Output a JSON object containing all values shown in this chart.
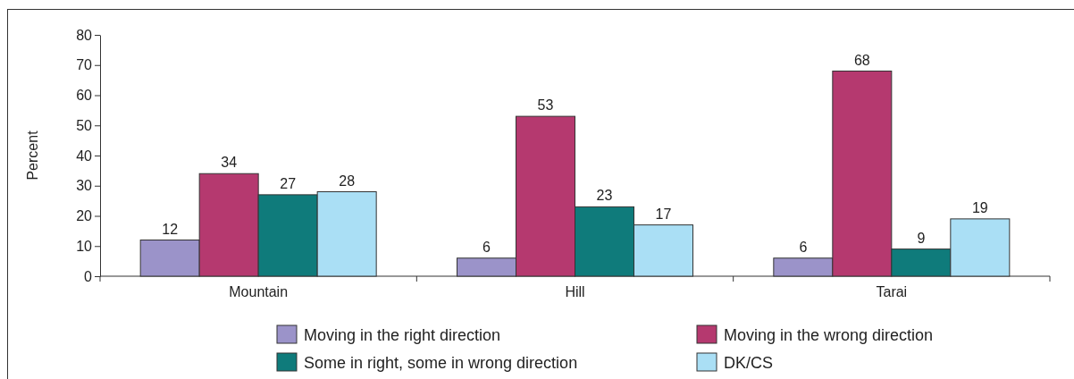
{
  "chart_data": {
    "type": "bar",
    "ylabel": "Percent",
    "categories": [
      "Mountain",
      "Hill",
      "Tarai"
    ],
    "series": [
      {
        "name": "Moving in the right direction",
        "color": "#9b93c9",
        "values": [
          12,
          6,
          6
        ]
      },
      {
        "name": "Moving in the wrong direction",
        "color": "#b5396f",
        "values": [
          34,
          53,
          68
        ]
      },
      {
        "name": "Some in right, some in wrong direction",
        "color": "#0f7b7b",
        "values": [
          27,
          23,
          9
        ]
      },
      {
        "name": "DK/CS",
        "color": "#aadff5",
        "values": [
          28,
          17,
          19
        ]
      }
    ],
    "ylim": [
      0,
      80
    ],
    "yticks": [
      0,
      10,
      20,
      30,
      40,
      50,
      60,
      70,
      80
    ],
    "data_labels": true,
    "legend": "bottom",
    "grid": false
  }
}
